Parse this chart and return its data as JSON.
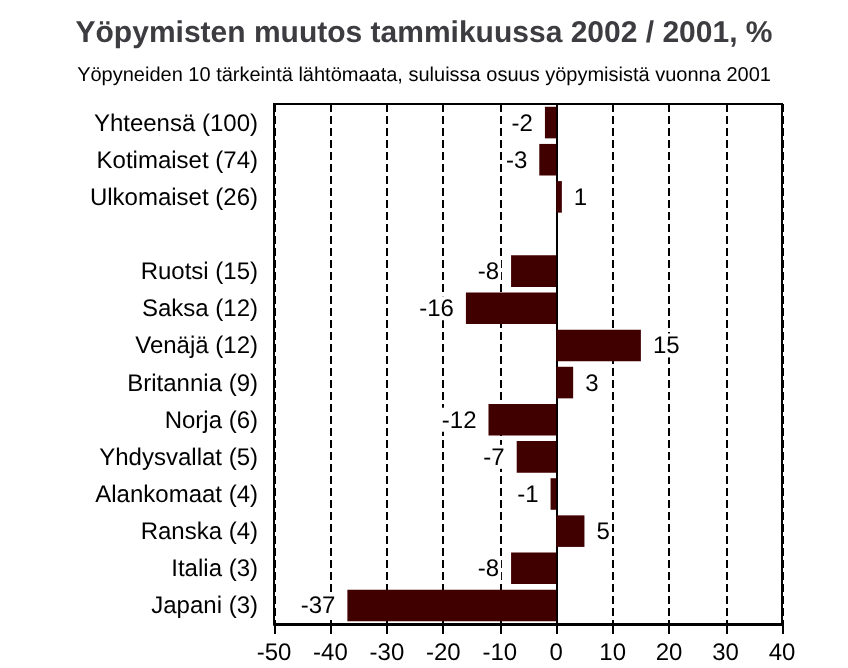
{
  "chart_data": {
    "type": "bar",
    "orientation": "horizontal",
    "title": "Yöpymisten muutos tammikuussa 2002 / 2001, %",
    "subtitle": "Yöpyneiden 10 tärkeintä lähtömaata, suluissa osuus yöpymisistä vuonna 2001",
    "categories": [
      "Yhteensä (100)",
      "Kotimaiset (74)",
      "Ulkomaiset (26)",
      null,
      "Ruotsi (15)",
      "Saksa (12)",
      "Venäjä (12)",
      "Britannia (9)",
      "Norja (6)",
      "Yhdysvallat (5)",
      "Alankomaat (4)",
      "Ranska (4)",
      "Italia (3)",
      "Japani (3)"
    ],
    "values": [
      -2,
      -3,
      1,
      null,
      -8,
      -16,
      15,
      3,
      -12,
      -7,
      -1,
      5,
      -8,
      -37
    ],
    "color": "#400000",
    "data_labels": true,
    "xlim": [
      -50,
      40
    ],
    "xticks": [
      -50,
      -40,
      -30,
      -20,
      -10,
      0,
      10,
      20,
      30,
      40
    ],
    "grid": "x"
  }
}
